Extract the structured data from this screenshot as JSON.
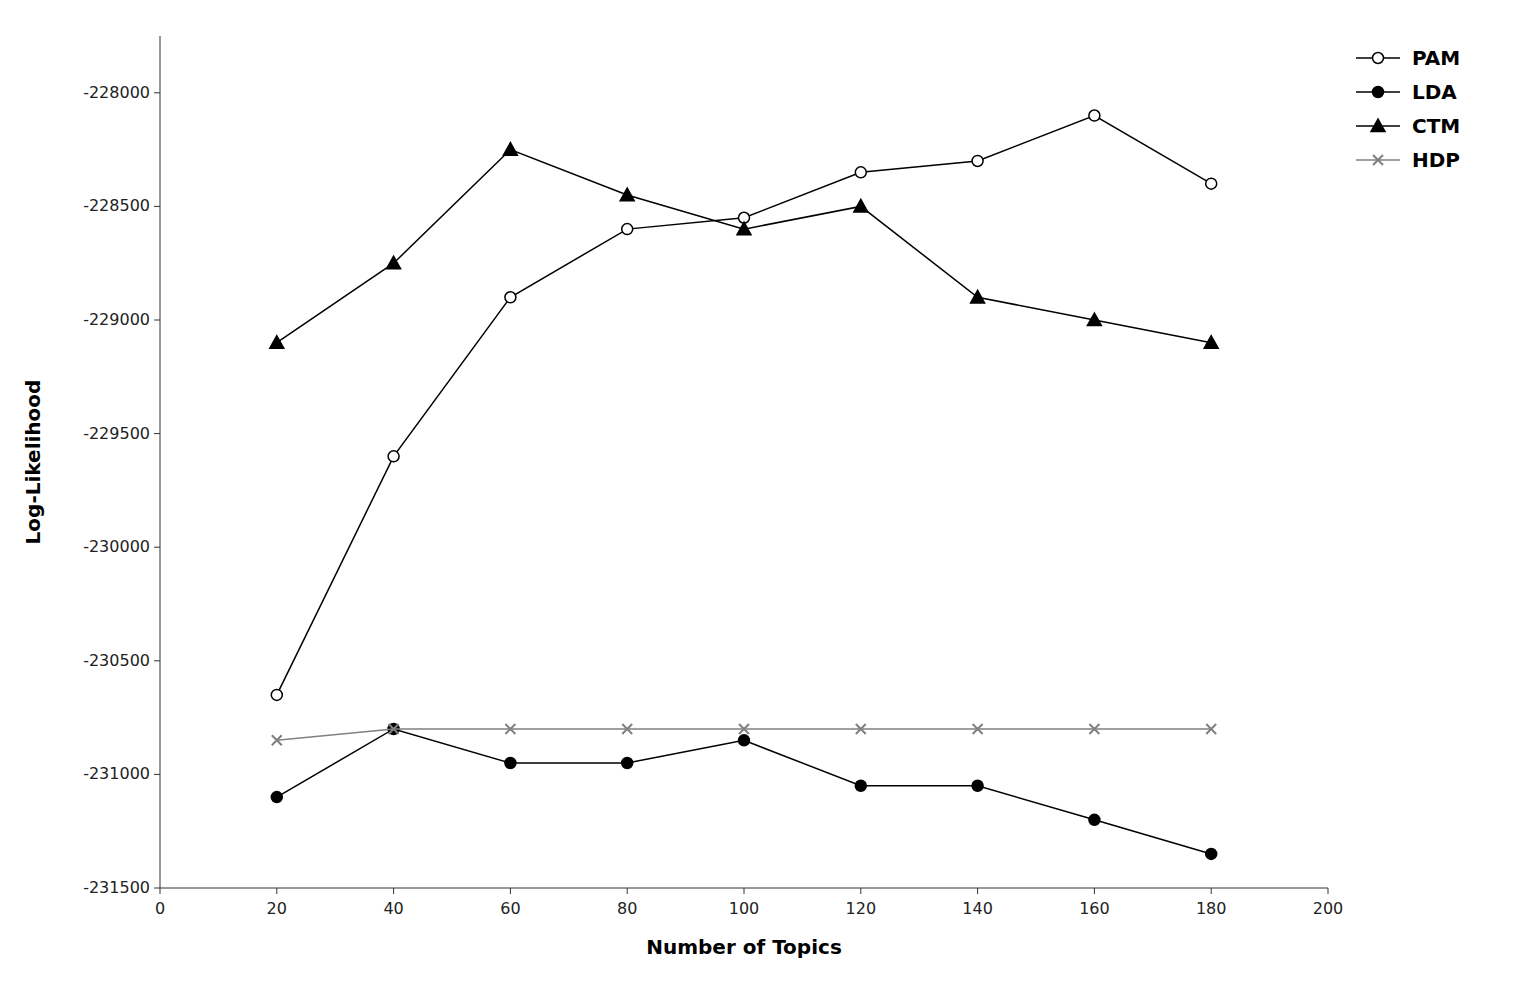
{
  "chart_data": {
    "type": "line",
    "xlabel": "Number of Topics",
    "ylabel": "Log-Likelihood",
    "x": [
      20,
      40,
      60,
      80,
      100,
      120,
      140,
      160,
      180
    ],
    "series": [
      {
        "name": "PAM",
        "color": "#000000",
        "marker": "circle-open",
        "values": [
          -230650,
          -229600,
          -228900,
          -228600,
          -228550,
          -228350,
          -228300,
          -228100,
          -228400
        ]
      },
      {
        "name": "LDA",
        "color": "#000000",
        "marker": "circle",
        "values": [
          -231100,
          -230800,
          -230950,
          -230950,
          -230850,
          -231050,
          -231050,
          -231200,
          -231350
        ]
      },
      {
        "name": "CTM",
        "color": "#000000",
        "marker": "triangle",
        "values": [
          -229100,
          -228750,
          -228250,
          -228450,
          -228600,
          -228500,
          -228900,
          -229000,
          -229100
        ]
      },
      {
        "name": "HDP",
        "color": "#808080",
        "marker": "x",
        "values": [
          -230850,
          -230800,
          -230800,
          -230800,
          -230800,
          -230800,
          -230800,
          -230800,
          -230800
        ]
      }
    ],
    "xlim": [
      0,
      200
    ],
    "ylim": [
      -231500,
      -227750
    ],
    "xticks": [
      0,
      20,
      40,
      60,
      80,
      100,
      120,
      140,
      160,
      180,
      200
    ],
    "yticks": [
      -231500,
      -231000,
      -230500,
      -230000,
      -229500,
      -229000,
      -228500,
      -228000
    ],
    "grid": false,
    "legend": "upper right"
  }
}
